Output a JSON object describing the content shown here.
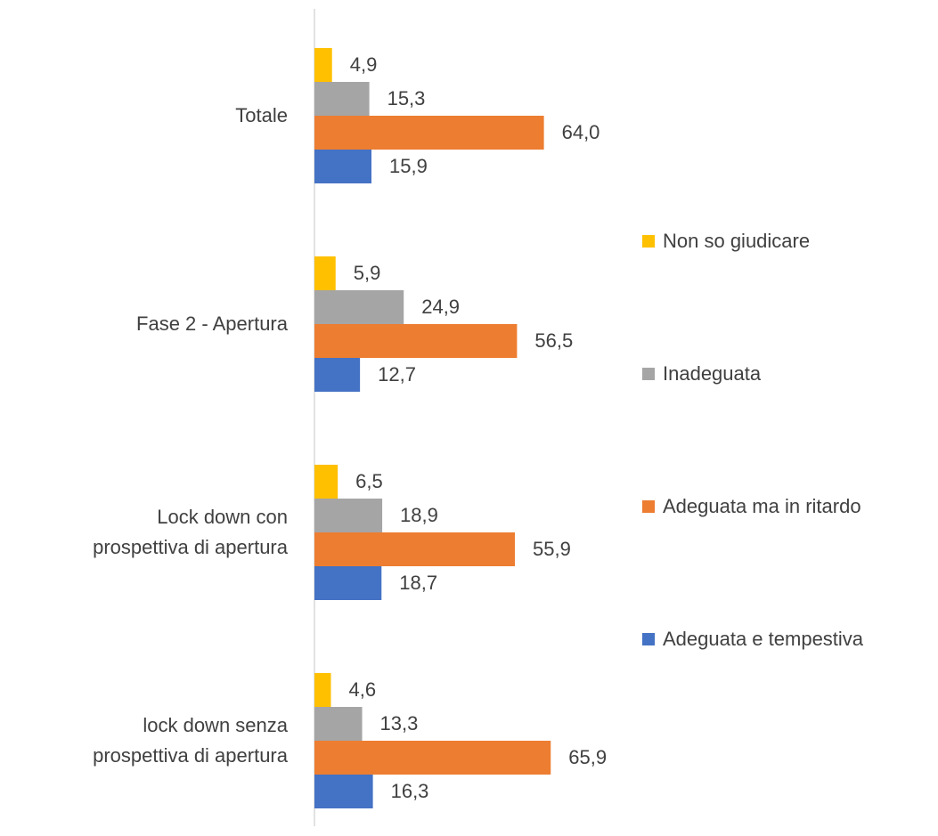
{
  "chart_data": {
    "type": "barh",
    "categories": [
      "Totale",
      "Fase 2 - Apertura",
      "Lock down con\nprospettiva di apertura",
      "lock down senza\nprospettiva di apertura"
    ],
    "series": [
      {
        "name": "Non so giudicare",
        "color": "#ffc000",
        "values": [
          4.9,
          5.9,
          6.5,
          4.6
        ],
        "value_labels": [
          "4,9",
          "5,9",
          "6,5",
          "4,6"
        ]
      },
      {
        "name": "Inadeguata",
        "color": "#a5a5a5",
        "values": [
          15.3,
          24.9,
          18.9,
          13.3
        ],
        "value_labels": [
          "15,3",
          "24,9",
          "18,9",
          "13,3"
        ]
      },
      {
        "name": "Adeguata ma in ritardo",
        "color": "#ed7d31",
        "values": [
          64.0,
          56.5,
          55.9,
          65.9
        ],
        "value_labels": [
          "64,0",
          "56,5",
          "55,9",
          "65,9"
        ]
      },
      {
        "name": "Adeguata e tempestiva",
        "color": "#4472c4",
        "values": [
          15.9,
          12.7,
          18.7,
          16.3
        ],
        "value_labels": [
          "15,9",
          "12,7",
          "18,7",
          "16,3"
        ]
      }
    ],
    "xlim": [
      0,
      80
    ],
    "legend": "right"
  }
}
